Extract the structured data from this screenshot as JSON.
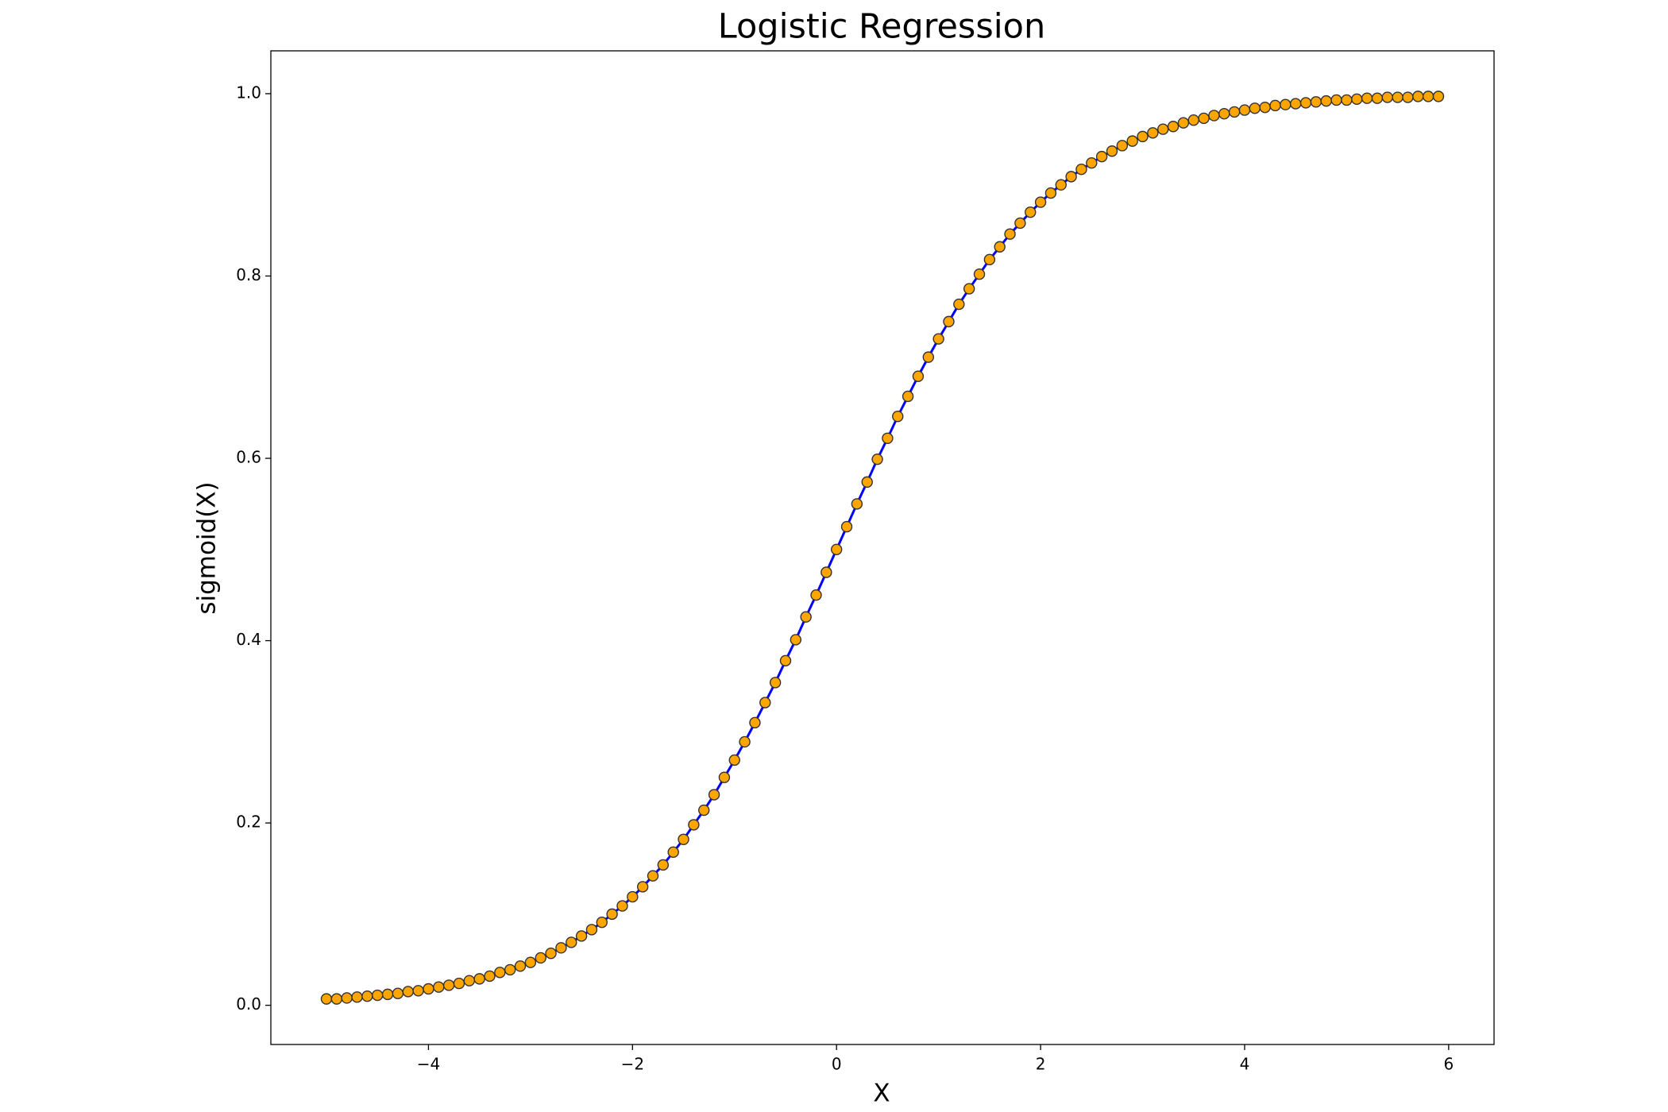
{
  "chart_data": {
    "type": "line",
    "title": "Logistic Regression",
    "x_label": "X",
    "y_label": "sigmoid(X)",
    "x": [
      -5.0,
      -4.9,
      -4.8,
      -4.7,
      -4.6,
      -4.5,
      -4.4,
      -4.3,
      -4.2,
      -4.1,
      -4.0,
      -3.9,
      -3.8,
      -3.7,
      -3.6,
      -3.5,
      -3.4,
      -3.3,
      -3.2,
      -3.1,
      -3.0,
      -2.9,
      -2.8,
      -2.7,
      -2.6,
      -2.5,
      -2.4,
      -2.3,
      -2.2,
      -2.1,
      -2.0,
      -1.9,
      -1.8,
      -1.7,
      -1.6,
      -1.5,
      -1.4,
      -1.3,
      -1.2,
      -1.1,
      -1.0,
      -0.9,
      -0.8,
      -0.7,
      -0.6,
      -0.5,
      -0.4,
      -0.3,
      -0.2,
      -0.1,
      0.0,
      0.1,
      0.2,
      0.3,
      0.4,
      0.5,
      0.6,
      0.7,
      0.8,
      0.9,
      1.0,
      1.1,
      1.2,
      1.3,
      1.4,
      1.5,
      1.6,
      1.7,
      1.8,
      1.9,
      2.0,
      2.1,
      2.2,
      2.3,
      2.4,
      2.5,
      2.6,
      2.7,
      2.8,
      2.9,
      3.0,
      3.1,
      3.2,
      3.3,
      3.4,
      3.5,
      3.6,
      3.7,
      3.8,
      3.9,
      4.0,
      4.1,
      4.2,
      4.3,
      4.4,
      4.5,
      4.6,
      4.7,
      4.8,
      4.9,
      5.0,
      5.1,
      5.2,
      5.3,
      5.4,
      5.5,
      5.6,
      5.7,
      5.8,
      5.9
    ],
    "values": [
      0.007,
      0.007,
      0.008,
      0.009,
      0.01,
      0.011,
      0.012,
      0.013,
      0.015,
      0.016,
      0.018,
      0.02,
      0.022,
      0.024,
      0.027,
      0.029,
      0.032,
      0.036,
      0.039,
      0.043,
      0.047,
      0.052,
      0.057,
      0.063,
      0.069,
      0.076,
      0.083,
      0.091,
      0.1,
      0.109,
      0.119,
      0.13,
      0.142,
      0.154,
      0.168,
      0.182,
      0.198,
      0.214,
      0.231,
      0.25,
      0.269,
      0.289,
      0.31,
      0.332,
      0.354,
      0.378,
      0.401,
      0.426,
      0.45,
      0.475,
      0.5,
      0.525,
      0.55,
      0.574,
      0.599,
      0.622,
      0.646,
      0.668,
      0.69,
      0.711,
      0.731,
      0.75,
      0.769,
      0.786,
      0.802,
      0.818,
      0.832,
      0.846,
      0.858,
      0.87,
      0.881,
      0.891,
      0.9,
      0.909,
      0.917,
      0.924,
      0.931,
      0.937,
      0.943,
      0.948,
      0.953,
      0.957,
      0.961,
      0.964,
      0.968,
      0.971,
      0.973,
      0.976,
      0.978,
      0.98,
      0.982,
      0.984,
      0.985,
      0.987,
      0.988,
      0.989,
      0.99,
      0.991,
      0.992,
      0.993,
      0.993,
      0.994,
      0.995,
      0.995,
      0.996,
      0.996,
      0.996,
      0.997,
      0.997,
      0.997
    ],
    "color": "#0000ff",
    "marker_color": "#ffa500",
    "marker_edge_color": "#333333",
    "xlim": [
      -5.545,
      6.445
    ],
    "ylim": [
      -0.043,
      1.047
    ],
    "xticks": [
      {
        "value": -4,
        "label": "−4"
      },
      {
        "value": -2,
        "label": "−2"
      },
      0,
      2,
      4,
      6
    ],
    "yticks": [
      {
        "value": 0,
        "label": "0.0"
      },
      0.2,
      0.4,
      0.6,
      0.8,
      {
        "value": 1,
        "label": "1.0"
      }
    ],
    "grid": false
  }
}
